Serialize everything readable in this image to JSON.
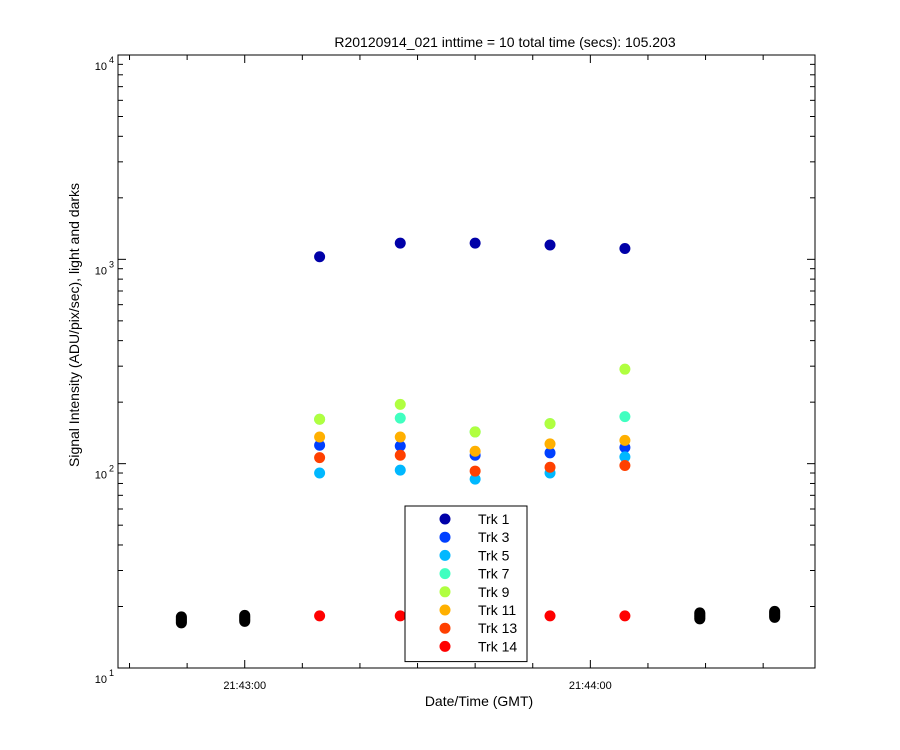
{
  "chart_data": {
    "type": "scatter",
    "title": "R20120914_021 inttime = 10 total time (secs): 105.203",
    "xlabel": "Date/Time (GMT)",
    "ylabel": "Signal Intensity (ADU/pix/sec), light and darks",
    "y_scale": "log",
    "ylim": [
      10,
      10000
    ],
    "xlim": [
      "21:42:38",
      "21:44:39"
    ],
    "x_ticks": [
      "21:43:00",
      "21:44:00"
    ],
    "y_ticks": [
      {
        "base": "10",
        "exp": "1"
      },
      {
        "base": "10",
        "exp": "2"
      },
      {
        "base": "10",
        "exp": "3"
      },
      {
        "base": "10",
        "exp": "4"
      }
    ],
    "grid": false,
    "legend_position": "bottom-center",
    "light_times": [
      "21:43:13",
      "21:43:27",
      "21:43:40",
      "21:43:53",
      "21:44:06"
    ],
    "series": [
      {
        "name": "Trk 1",
        "color": "#0000a8",
        "values": [
          1030,
          1200,
          1200,
          1175,
          1130
        ]
      },
      {
        "name": "Trk 3",
        "color": "#0040ff",
        "values": [
          123,
          122,
          110,
          113,
          120
        ]
      },
      {
        "name": "Trk 5",
        "color": "#00b8ff",
        "values": [
          90,
          93,
          84,
          90,
          108
        ]
      },
      {
        "name": "Trk 7",
        "color": "#40ffc0",
        "values": [
          165,
          167,
          143,
          157,
          170
        ]
      },
      {
        "name": "Trk 9",
        "color": "#b0ff40",
        "values": [
          165,
          195,
          143,
          157,
          290
        ]
      },
      {
        "name": "Trk 11",
        "color": "#ffb000",
        "values": [
          135,
          135,
          115,
          125,
          130
        ]
      },
      {
        "name": "Trk 13",
        "color": "#ff4000",
        "values": [
          107,
          110,
          92,
          96,
          98
        ]
      },
      {
        "name": "Trk 14",
        "color": "#ff0000",
        "values": [
          18,
          18,
          18,
          18,
          18
        ]
      }
    ],
    "darks": {
      "color": "#000000",
      "times": [
        "21:42:49",
        "21:43:00",
        "21:44:19",
        "21:44:32"
      ],
      "values": [
        17.2,
        17.5,
        18.0,
        18.3
      ]
    }
  }
}
